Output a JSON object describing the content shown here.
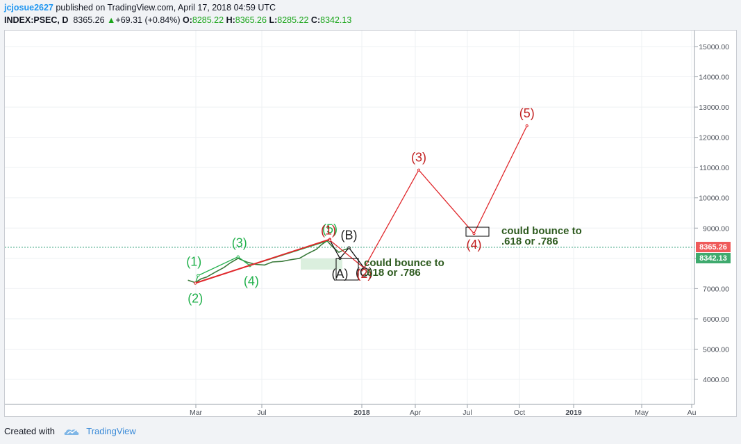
{
  "header": {
    "author": "jcjosue2627",
    "published_text": "published on TradingView.com, April 17, 2018 04:59 UTC",
    "symbol_line": "INDEX:PSEC, D",
    "last": "8365.26",
    "change": "+69.31 (+0.84%)",
    "open_label": "O:",
    "open": "8285.22",
    "high_label": "H:",
    "high": "8365.26",
    "low_label": "L:",
    "low": "8285.22",
    "close_label": "C:",
    "close": "8342.13"
  },
  "footer": {
    "created_with": "Created with",
    "brand": "TradingView"
  },
  "colors": {
    "green_wave": "#22b14c",
    "red_wave": "#e0272b",
    "red_label": "#c21f1f",
    "dark_green_text": "#2d5a1e",
    "price_line": "#2e9e7a",
    "badge_red": "#ef5a5a",
    "badge_green": "#3faa6e"
  },
  "chart_data": {
    "type": "line",
    "title": "",
    "xlabel": "",
    "ylabel": "",
    "y_axis": {
      "ticks": [
        "15000.00",
        "14000.00",
        "13000.00",
        "12000.00",
        "11000.00",
        "10000.00",
        "9000.00",
        "8000.00",
        "7000.00",
        "6000.00",
        "5000.00",
        "4000.00"
      ],
      "range": [
        3200,
        15700
      ]
    },
    "x_axis": {
      "ticks": [
        "Mar",
        "Jul",
        "2018",
        "Apr",
        "Jul",
        "Oct",
        "2019",
        "May",
        "Au"
      ],
      "bold_ticks": [
        "2018",
        "2019"
      ]
    },
    "price_badges": {
      "last": "8365.26",
      "close": "8342.13"
    },
    "price_history": [
      [
        "2017-02-15",
        7280
      ],
      [
        "2017-02-28",
        7200
      ],
      [
        "2017-03-10",
        7320
      ],
      [
        "2017-03-20",
        7380
      ],
      [
        "2017-04-05",
        7550
      ],
      [
        "2017-04-20",
        7700
      ],
      [
        "2017-05-01",
        7850
      ],
      [
        "2017-05-15",
        8000
      ],
      [
        "2017-05-30",
        7880
      ],
      [
        "2017-06-15",
        7800
      ],
      [
        "2017-07-01",
        7780
      ],
      [
        "2017-07-15",
        7880
      ],
      [
        "2017-08-01",
        7900
      ],
      [
        "2017-08-15",
        7950
      ],
      [
        "2017-09-01",
        8000
      ],
      [
        "2017-09-15",
        8150
      ],
      [
        "2017-10-01",
        8300
      ],
      [
        "2017-10-10",
        8450
      ],
      [
        "2017-10-20",
        8580
      ],
      [
        "2017-10-30",
        8380
      ],
      [
        "2017-11-10",
        8200
      ],
      [
        "2017-11-20",
        8290
      ],
      [
        "2017-12-01",
        8350
      ]
    ],
    "series": [
      {
        "role": "completed impulse",
        "color": "green",
        "points": [
          {
            "x": "2017-02-28",
            "y": 7180,
            "label": "(2)"
          },
          {
            "x": "2017-03-05",
            "y": 7430,
            "label": "(1)"
          },
          {
            "x": "2017-05-15",
            "y": 8050,
            "label": "(3)"
          },
          {
            "x": "2017-06-05",
            "y": 7760,
            "label": "(4)"
          },
          {
            "x": "2017-10-25",
            "y": 8600,
            "label": "(5)"
          }
        ]
      },
      {
        "role": "trend line",
        "color": "red",
        "points": [
          {
            "x": "2017-02-28",
            "y": 7180
          },
          {
            "x": "2017-10-25",
            "y": 8630
          }
        ]
      },
      {
        "role": "ABC correction",
        "color": "black",
        "points": [
          {
            "x": "2017-10-25",
            "y": 8600
          },
          {
            "x": "2017-11-12",
            "y": 8000,
            "label": "(A)"
          },
          {
            "x": "2017-11-28",
            "y": 8350,
            "label": "(B)"
          },
          {
            "x": "2017-12-25",
            "y": 7680,
            "label": "(C)"
          }
        ]
      },
      {
        "role": "projected impulse",
        "color": "red",
        "points": [
          {
            "x": "2017-10-25",
            "y": 8600,
            "label": "(1)"
          },
          {
            "x": "2017-12-25",
            "y": 7680,
            "label": "(2)"
          },
          {
            "x": "2018-04-01",
            "y": 10920,
            "label": "(3)"
          },
          {
            "x": "2018-07-08",
            "y": 8820,
            "label": "(4)"
          },
          {
            "x": "2018-10-10",
            "y": 12380,
            "label": "(5)"
          }
        ]
      }
    ],
    "annotations": [
      {
        "text_lines": [
          "could bounce to",
          ".618 or .786"
        ],
        "near": "(2) target box"
      },
      {
        "text_lines": [
          "could bounce to",
          ".618 or .786"
        ],
        "near": "(4) target box"
      }
    ]
  }
}
